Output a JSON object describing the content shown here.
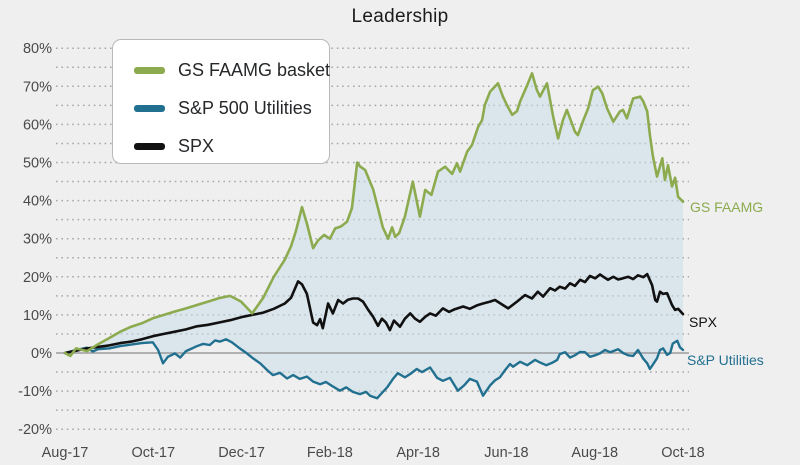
{
  "title": "Leadership",
  "legend": {
    "items": [
      {
        "label": "GS FAAMG basket",
        "color": "#8cab4f"
      },
      {
        "label": "S&P 500 Utilities",
        "color": "#22708f"
      },
      {
        "label": "SPX",
        "color": "#111111"
      }
    ]
  },
  "end_labels": {
    "gs": "GS FAAMG",
    "spx": "SPX",
    "util": "S&P Utilities"
  },
  "colors": {
    "background": "#efefef",
    "grid_dots": "#a8a8a8",
    "zero_line": "#9b9b9b",
    "tick_text": "#4a4a4a",
    "band_fill": "#c7dde9"
  },
  "chart_data": {
    "type": "line",
    "title": "Leadership",
    "x_unit": "months since Aug-2017",
    "xlim": [
      0,
      14
    ],
    "ylim": [
      -20,
      80
    ],
    "y_tick_labels": [
      "80%",
      "70%",
      "60%",
      "50%",
      "40%",
      "30%",
      "20%",
      "10%",
      "0%",
      "-10%",
      "-20%"
    ],
    "y_tick_values": [
      80,
      70,
      60,
      50,
      40,
      30,
      20,
      10,
      0,
      -10,
      -20
    ],
    "minor_grid_step": 5,
    "grid_style": "dotted horizontal, solid line at 0%",
    "x_tick_labels": [
      "Aug-17",
      "Oct-17",
      "Dec-17",
      "Feb-18",
      "Apr-18",
      "Jun-18",
      "Aug-18",
      "Oct-18"
    ],
    "x_tick_positions": [
      0,
      2,
      4,
      6,
      8,
      10,
      12,
      14
    ],
    "legend_position": "top-left box",
    "band_fill": {
      "between": [
        "GS FAAMG basket",
        "S&P 500 Utilities"
      ],
      "color": "#c7dde9",
      "opacity": 0.5
    },
    "series": [
      {
        "name": "GS FAAMG basket",
        "end_label": "GS FAAMG",
        "color": "#8cab4f",
        "x": [
          0,
          0.12,
          0.25,
          0.5,
          0.75,
          1,
          1.25,
          1.5,
          1.74,
          1.99,
          2.24,
          2.49,
          2.74,
          2.99,
          3.24,
          3.49,
          3.74,
          3.99,
          4.24,
          4.49,
          4.73,
          4.98,
          5.12,
          5.23,
          5.37,
          5.48,
          5.62,
          5.73,
          5.87,
          6,
          6.12,
          6.25,
          6.39,
          6.5,
          6.57,
          6.62,
          6.68,
          6.8,
          6.98,
          7.09,
          7.2,
          7.32,
          7.41,
          7.48,
          7.57,
          7.7,
          7.88,
          8.04,
          8.16,
          8.3,
          8.45,
          8.61,
          8.77,
          8.88,
          8.95,
          9.11,
          9.22,
          9.36,
          9.45,
          9.51,
          9.63,
          9.81,
          9.92,
          10.01,
          10.13,
          10.24,
          10.31,
          10.47,
          10.58,
          10.69,
          10.76,
          10.92,
          11.06,
          11.17,
          11.28,
          11.37,
          11.55,
          11.62,
          11.74,
          11.85,
          11.96,
          12.08,
          12.17,
          12.28,
          12.42,
          12.57,
          12.64,
          12.73,
          12.87,
          13.03,
          13.1,
          13.19,
          13.25,
          13.32,
          13.41,
          13.53,
          13.59,
          13.66,
          13.75,
          13.82,
          13.89,
          14
        ],
        "y": [
          0,
          -0.8,
          1.2,
          0.5,
          2.3,
          3.9,
          5.6,
          6.9,
          7.8,
          9.1,
          10,
          10.9,
          11.7,
          12.6,
          13.5,
          14.4,
          15,
          13.5,
          10.4,
          14.5,
          20,
          24.5,
          28,
          32,
          38.3,
          34,
          27.5,
          29.5,
          31,
          30,
          32.7,
          33.2,
          34.5,
          38,
          45,
          50,
          49,
          48,
          43,
          38,
          33,
          30,
          33,
          30.5,
          31.5,
          35.8,
          45,
          35.8,
          42.8,
          41.5,
          47.6,
          48.9,
          47,
          49.8,
          47.6,
          52.8,
          54.6,
          59.4,
          61.1,
          65.1,
          68.6,
          70.8,
          67.3,
          65.1,
          62.5,
          63.5,
          66,
          70.3,
          73.4,
          69,
          67.3,
          70.8,
          62,
          56.3,
          61.1,
          63.8,
          58.1,
          57.2,
          61,
          64.2,
          69,
          69.9,
          68.2,
          64.2,
          60.7,
          63.4,
          63.8,
          61.6,
          66.8,
          67.3,
          66,
          63.4,
          57.2,
          51.5,
          46.3,
          51.1,
          45.4,
          49.3,
          43.7,
          46,
          41,
          39.7
        ]
      },
      {
        "name": "S&P 500 Utilities",
        "end_label": "S&P Utilities",
        "color": "#22708f",
        "x": [
          0,
          0.25,
          0.5,
          0.63,
          0.75,
          1,
          1.25,
          1.5,
          1.74,
          1.99,
          2.11,
          2.22,
          2.33,
          2.49,
          2.61,
          2.74,
          2.88,
          2.99,
          3.13,
          3.28,
          3.4,
          3.51,
          3.65,
          3.78,
          3.96,
          4.12,
          4.26,
          4.42,
          4.58,
          4.71,
          4.87,
          5.03,
          5.17,
          5.32,
          5.48,
          5.62,
          5.78,
          5.91,
          6.07,
          6.23,
          6.37,
          6.52,
          6.68,
          6.82,
          6.91,
          7.07,
          7.18,
          7.3,
          7.43,
          7.54,
          7.7,
          7.82,
          7.97,
          8.09,
          8.27,
          8.43,
          8.56,
          8.72,
          8.9,
          9.04,
          9.17,
          9.33,
          9.47,
          9.63,
          9.74,
          9.85,
          9.97,
          10.08,
          10.15,
          10.31,
          10.47,
          10.65,
          10.76,
          10.9,
          11.03,
          11.15,
          11.21,
          11.33,
          11.44,
          11.55,
          11.67,
          11.78,
          11.89,
          12.01,
          12.12,
          12.23,
          12.35,
          12.53,
          12.64,
          12.76,
          12.87,
          12.98,
          13.1,
          13.19,
          13.25,
          13.32,
          13.41,
          13.48,
          13.55,
          13.64,
          13.71,
          13.77,
          13.87,
          13.93,
          14
        ],
        "y": [
          0,
          0.8,
          1.4,
          0.4,
          1,
          1.2,
          1.8,
          2.2,
          2.6,
          2.8,
          0.8,
          -2.7,
          -1,
          -0.1,
          -1.2,
          0.5,
          1.2,
          1.8,
          2.4,
          2.1,
          3.3,
          3,
          3.6,
          2.8,
          1.2,
          -0.1,
          -1.4,
          -2.7,
          -4.5,
          -5.8,
          -5.2,
          -6.7,
          -5.8,
          -6.8,
          -6.2,
          -7.5,
          -8.2,
          -7.6,
          -8.8,
          -9.9,
          -9,
          -10.2,
          -10.8,
          -10.2,
          -11.2,
          -11.9,
          -10.5,
          -9,
          -6.8,
          -5.3,
          -6.4,
          -5.5,
          -4.2,
          -5,
          -3.8,
          -6.5,
          -7.3,
          -6.5,
          -9.9,
          -8.5,
          -6.8,
          -7.5,
          -11.2,
          -8.5,
          -7.2,
          -6.4,
          -4.5,
          -2.9,
          -3.6,
          -2.3,
          -3.2,
          -1.8,
          -2.5,
          -3.2,
          -2.6,
          -1.8,
          -0.3,
          0.2,
          -1.2,
          -0.6,
          0.3,
          0.2,
          -1,
          -0.6,
          -0.1,
          0.8,
          0.2,
          1,
          0,
          -0.6,
          -0.8,
          0.8,
          -1.5,
          -2.7,
          -4.2,
          -3,
          -1.4,
          0.8,
          1.2,
          -0.5,
          0,
          2.5,
          3.2,
          1.5,
          0.8
        ]
      },
      {
        "name": "SPX",
        "end_label": "SPX",
        "color": "#111111",
        "x": [
          0,
          0.25,
          0.5,
          0.75,
          1,
          1.25,
          1.5,
          1.74,
          1.99,
          2.24,
          2.49,
          2.74,
          2.99,
          3.24,
          3.49,
          3.74,
          3.99,
          4.24,
          4.49,
          4.73,
          4.98,
          5.12,
          5.28,
          5.37,
          5.48,
          5.62,
          5.71,
          5.78,
          5.84,
          5.96,
          6.07,
          6.19,
          6.3,
          6.41,
          6.52,
          6.64,
          6.75,
          6.86,
          6.98,
          7.09,
          7.18,
          7.27,
          7.36,
          7.45,
          7.59,
          7.7,
          7.82,
          7.93,
          8.04,
          8.16,
          8.27,
          8.4,
          8.56,
          8.7,
          8.83,
          9.02,
          9.17,
          9.33,
          9.47,
          9.63,
          9.74,
          10.04,
          10.24,
          10.42,
          10.58,
          10.71,
          10.83,
          10.99,
          11.1,
          11.21,
          11.33,
          11.44,
          11.55,
          11.67,
          11.78,
          11.89,
          12.01,
          12.12,
          12.21,
          12.3,
          12.42,
          12.53,
          12.64,
          12.76,
          12.87,
          12.98,
          13.1,
          13.19,
          13.3,
          13.37,
          13.41,
          13.48,
          13.55,
          13.64,
          13.75,
          13.82,
          13.89,
          14
        ],
        "y": [
          0,
          0.6,
          1.2,
          1.6,
          2,
          2.6,
          3,
          3.6,
          4.4,
          5,
          5.6,
          6.2,
          7,
          7.4,
          8,
          8.6,
          9.4,
          10,
          10.6,
          11.6,
          13,
          14.5,
          18.8,
          18,
          15.5,
          8,
          7.3,
          8.9,
          6.5,
          13,
          10.4,
          13.9,
          13,
          14,
          14.3,
          14.3,
          13.5,
          11.5,
          9.5,
          7.1,
          9,
          8,
          6,
          8.5,
          6.9,
          9,
          10.4,
          9,
          8.2,
          9.5,
          10.4,
          9.8,
          11.7,
          10.8,
          11.5,
          12.2,
          11.6,
          12.5,
          13,
          13.5,
          13.9,
          11.7,
          13.5,
          15.2,
          14.3,
          16.1,
          14.8,
          17,
          16.4,
          17.4,
          16.9,
          18.3,
          17.6,
          19.2,
          18.6,
          20.2,
          19.6,
          20.6,
          19.9,
          19.2,
          20,
          19.3,
          19.6,
          20,
          19.4,
          20.4,
          19.9,
          20.7,
          17.8,
          13.9,
          13.5,
          16.1,
          15.5,
          15.7,
          12.6,
          11.3,
          11.6,
          10.2
        ]
      }
    ]
  }
}
